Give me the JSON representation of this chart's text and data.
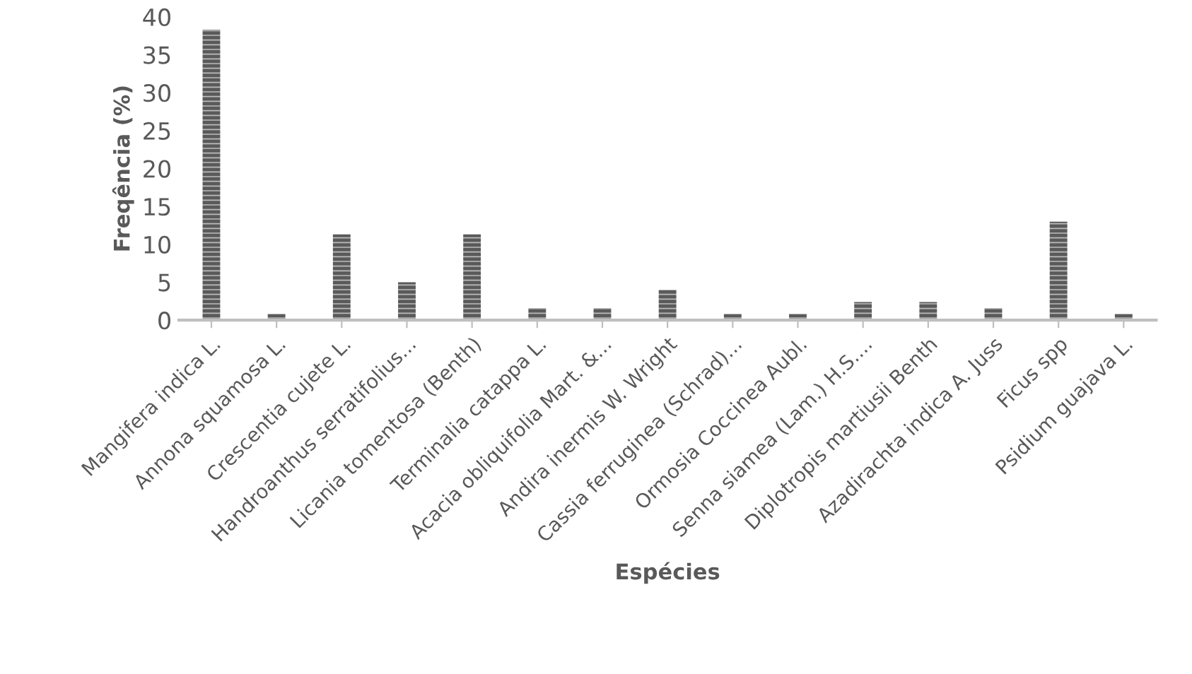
{
  "chart_data": {
    "type": "bar",
    "xlabel": "Espécies",
    "ylabel": "Freqência (%)",
    "categories": [
      "Mangifera indica L.",
      "Annona squamosa L.",
      "Crescentia cujete L.",
      "Handroanthus serratifolius...",
      "Licania tomentosa (Benth)",
      "Terminalia catappa L.",
      "Acacia obliquifolia Mart. &...",
      "Andira inermis W. Wright",
      "Cassia ferruginea (Schrad)...",
      "Ormosia Coccinea Aubl.",
      "Senna siamea (Lam.) H.S....",
      "Diplotropis martiusii Benth",
      "Azadirachta indica A. Juss",
      "Ficus spp",
      "Psidium guajava L."
    ],
    "values": [
      38.3,
      0.8,
      11.3,
      5,
      11.3,
      1.6,
      1.6,
      4,
      0.8,
      0.8,
      2.4,
      2.4,
      1.6,
      13,
      0.8
    ],
    "color": "#5a5a5a",
    "ylim": [
      0,
      40
    ],
    "yticks": [
      0,
      5,
      10,
      15,
      20,
      25,
      30,
      35,
      40
    ],
    "grid": false
  }
}
